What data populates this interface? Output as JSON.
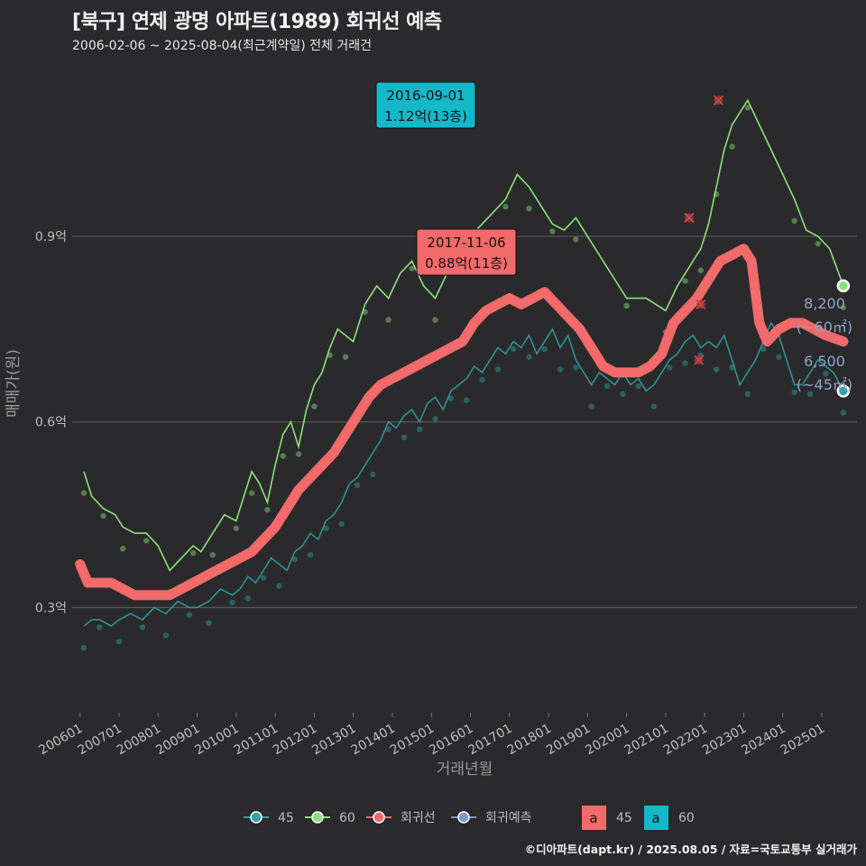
{
  "header": {
    "title": "[북구] 연제 광명 아파트(1989) 회귀선 예측",
    "subtitle": "2006-02-06 ~ 2025-08-04(최근계약일) 전체 거래건"
  },
  "footer": "©디아파트(dapt.kr) / 2025.08.05 / 자료=국토교통부 실거래가",
  "colors": {
    "background": "#2a2a2c",
    "grid": "#555555",
    "s45": "#2fa3a6",
    "s60": "#8de07c",
    "regression": "#f36a6a",
    "forecast": "#7d96c8",
    "box45": "#f36a6a",
    "box60": "#14b8c8",
    "end_label": "#8ea2c8"
  },
  "chart_data": {
    "type": "line",
    "title": "[북구] 연제 광명 아파트(1989) 회귀선 예측",
    "xlabel": "거래년월",
    "ylabel": "매매가(원)",
    "xlim": [
      2005.8,
      2025.9
    ],
    "ylim": [
      0.13,
      1.18
    ],
    "x_ticks": [
      "200601",
      "200701",
      "200801",
      "200901",
      "201001",
      "201101",
      "201201",
      "201301",
      "201401",
      "201501",
      "201601",
      "201701",
      "201801",
      "201901",
      "202001",
      "202101",
      "202201",
      "202301",
      "202401",
      "202501"
    ],
    "y_ticks": [
      {
        "v": 0.3,
        "label": "0.3억"
      },
      {
        "v": 0.6,
        "label": "0.6억"
      },
      {
        "v": 0.9,
        "label": "0.9억"
      }
    ],
    "series": [
      {
        "name": "45",
        "x": [
          2006.1,
          2006.3,
          2006.5,
          2006.8,
          2007.0,
          2007.3,
          2007.6,
          2007.9,
          2008.2,
          2008.5,
          2008.8,
          2009.0,
          2009.3,
          2009.6,
          2009.9,
          2010.1,
          2010.3,
          2010.5,
          2010.7,
          2010.9,
          2011.1,
          2011.3,
          2011.5,
          2011.7,
          2011.9,
          2012.1,
          2012.3,
          2012.5,
          2012.7,
          2012.9,
          2013.1,
          2013.3,
          2013.5,
          2013.7,
          2013.9,
          2014.1,
          2014.3,
          2014.5,
          2014.7,
          2014.9,
          2015.1,
          2015.3,
          2015.5,
          2015.7,
          2015.9,
          2016.1,
          2016.3,
          2016.5,
          2016.7,
          2016.9,
          2017.1,
          2017.3,
          2017.5,
          2017.7,
          2017.9,
          2018.1,
          2018.3,
          2018.5,
          2018.7,
          2018.9,
          2019.1,
          2019.3,
          2019.5,
          2019.7,
          2019.9,
          2020.1,
          2020.3,
          2020.5,
          2020.7,
          2020.9,
          2021.1,
          2021.3,
          2021.5,
          2021.7,
          2021.9,
          2022.1,
          2022.3,
          2022.5,
          2022.7,
          2022.9,
          2023.1,
          2023.3,
          2023.5,
          2023.7,
          2023.9,
          2024.1,
          2024.3,
          2024.5,
          2024.7,
          2024.9,
          2025.1,
          2025.3,
          2025.55
        ],
        "y": [
          0.27,
          0.28,
          0.28,
          0.27,
          0.28,
          0.29,
          0.28,
          0.3,
          0.29,
          0.31,
          0.3,
          0.3,
          0.31,
          0.33,
          0.32,
          0.33,
          0.35,
          0.34,
          0.36,
          0.38,
          0.37,
          0.36,
          0.39,
          0.4,
          0.42,
          0.41,
          0.44,
          0.45,
          0.47,
          0.5,
          0.51,
          0.53,
          0.55,
          0.57,
          0.6,
          0.59,
          0.61,
          0.62,
          0.6,
          0.63,
          0.64,
          0.62,
          0.65,
          0.66,
          0.67,
          0.69,
          0.68,
          0.7,
          0.72,
          0.71,
          0.73,
          0.72,
          0.74,
          0.71,
          0.73,
          0.75,
          0.72,
          0.74,
          0.7,
          0.68,
          0.66,
          0.68,
          0.67,
          0.66,
          0.68,
          0.66,
          0.67,
          0.65,
          0.66,
          0.68,
          0.7,
          0.71,
          0.73,
          0.74,
          0.72,
          0.73,
          0.72,
          0.74,
          0.7,
          0.66,
          0.68,
          0.7,
          0.73,
          0.76,
          0.74,
          0.7,
          0.66,
          0.66,
          0.68,
          0.7,
          0.69,
          0.68,
          0.65
        ]
      },
      {
        "name": "60",
        "x": [
          2006.1,
          2006.3,
          2006.6,
          2006.9,
          2007.1,
          2007.4,
          2007.7,
          2008.0,
          2008.3,
          2008.6,
          2008.9,
          2009.1,
          2009.4,
          2009.7,
          2010.0,
          2010.2,
          2010.4,
          2010.6,
          2010.8,
          2011.0,
          2011.2,
          2011.4,
          2011.6,
          2011.8,
          2012.0,
          2012.2,
          2012.4,
          2012.6,
          2012.8,
          2013.0,
          2013.3,
          2013.6,
          2013.9,
          2014.2,
          2014.5,
          2014.8,
          2015.1,
          2015.4,
          2015.7,
          2016.0,
          2016.3,
          2016.6,
          2016.9,
          2017.2,
          2017.5,
          2017.8,
          2018.1,
          2018.4,
          2018.7,
          2019.0,
          2020.0,
          2020.5,
          2021.0,
          2021.3,
          2021.5,
          2021.7,
          2021.9,
          2022.1,
          2022.3,
          2022.5,
          2022.7,
          2022.9,
          2023.1,
          2024.0,
          2024.3,
          2024.6,
          2024.9,
          2025.2,
          2025.55
        ],
        "y": [
          0.52,
          0.48,
          0.46,
          0.45,
          0.43,
          0.42,
          0.42,
          0.4,
          0.36,
          0.38,
          0.4,
          0.39,
          0.42,
          0.45,
          0.44,
          0.48,
          0.52,
          0.5,
          0.47,
          0.53,
          0.58,
          0.6,
          0.56,
          0.62,
          0.66,
          0.68,
          0.72,
          0.75,
          0.74,
          0.73,
          0.79,
          0.82,
          0.8,
          0.84,
          0.86,
          0.82,
          0.8,
          0.84,
          0.88,
          0.9,
          0.92,
          0.94,
          0.96,
          1.0,
          0.98,
          0.95,
          0.92,
          0.91,
          0.93,
          0.9,
          0.8,
          0.8,
          0.78,
          0.82,
          0.84,
          0.86,
          0.88,
          0.92,
          0.98,
          1.04,
          1.08,
          1.1,
          1.12,
          1.0,
          0.96,
          0.91,
          0.9,
          0.88,
          0.82
        ]
      },
      {
        "name": "회귀선",
        "x": [
          2006.0,
          2006.2,
          2006.5,
          2006.8,
          2007.1,
          2007.4,
          2007.7,
          2008.0,
          2008.3,
          2008.6,
          2008.9,
          2009.2,
          2009.5,
          2009.8,
          2010.1,
          2010.4,
          2010.7,
          2011.0,
          2011.3,
          2011.6,
          2011.9,
          2012.2,
          2012.5,
          2012.8,
          2013.1,
          2013.4,
          2013.7,
          2014.0,
          2014.3,
          2014.6,
          2014.9,
          2015.2,
          2015.5,
          2015.8,
          2016.1,
          2016.4,
          2016.7,
          2017.0,
          2017.3,
          2017.6,
          2017.9,
          2018.2,
          2018.5,
          2018.8,
          2019.1,
          2019.4,
          2019.7,
          2020.0,
          2020.3,
          2020.6,
          2020.9,
          2021.2,
          2021.5,
          2021.8,
          2022.1,
          2022.4,
          2022.7,
          2023.0,
          2023.2,
          2023.4,
          2023.6,
          2023.9,
          2024.2,
          2024.5,
          2024.8,
          2025.1,
          2025.55
        ],
        "y": [
          0.37,
          0.34,
          0.34,
          0.34,
          0.33,
          0.32,
          0.32,
          0.32,
          0.32,
          0.33,
          0.34,
          0.35,
          0.36,
          0.37,
          0.38,
          0.39,
          0.41,
          0.43,
          0.46,
          0.49,
          0.51,
          0.53,
          0.55,
          0.58,
          0.61,
          0.64,
          0.66,
          0.67,
          0.68,
          0.69,
          0.7,
          0.71,
          0.72,
          0.73,
          0.76,
          0.78,
          0.79,
          0.8,
          0.79,
          0.8,
          0.81,
          0.79,
          0.77,
          0.75,
          0.72,
          0.69,
          0.68,
          0.68,
          0.68,
          0.69,
          0.71,
          0.76,
          0.78,
          0.8,
          0.83,
          0.86,
          0.87,
          0.88,
          0.86,
          0.76,
          0.73,
          0.75,
          0.76,
          0.76,
          0.75,
          0.74,
          0.73
        ]
      }
    ],
    "annotations": [
      {
        "series": "60",
        "date": "2016-09-01",
        "value": "1.12억(13층)",
        "x": 2016.67,
        "y": 1.12
      },
      {
        "series": "45",
        "date": "2017-11-06",
        "value": "0.88억(11층)",
        "x": 2017.85,
        "y": 0.88
      }
    ],
    "end_points": [
      {
        "series": "60",
        "x": 2025.55,
        "y": 0.82,
        "label_price": "8,200",
        "label_area": "(~60㎡)"
      },
      {
        "series": "45",
        "x": 2025.55,
        "y": 0.65,
        "label_price": "6,500",
        "label_area": "(~45㎡)"
      }
    ],
    "outliers": [
      {
        "x": 2022.35,
        "y": 1.12
      },
      {
        "x": 2021.6,
        "y": 0.93
      },
      {
        "x": 2021.9,
        "y": 0.79
      },
      {
        "x": 2021.85,
        "y": 0.7
      }
    ],
    "legend": {
      "position": "bottom",
      "lines": [
        "45",
        "60",
        "회귀선",
        "회귀예측"
      ],
      "boxes": [
        {
          "name": "45",
          "glyph": "a"
        },
        {
          "name": "60",
          "glyph": "a"
        }
      ]
    }
  }
}
